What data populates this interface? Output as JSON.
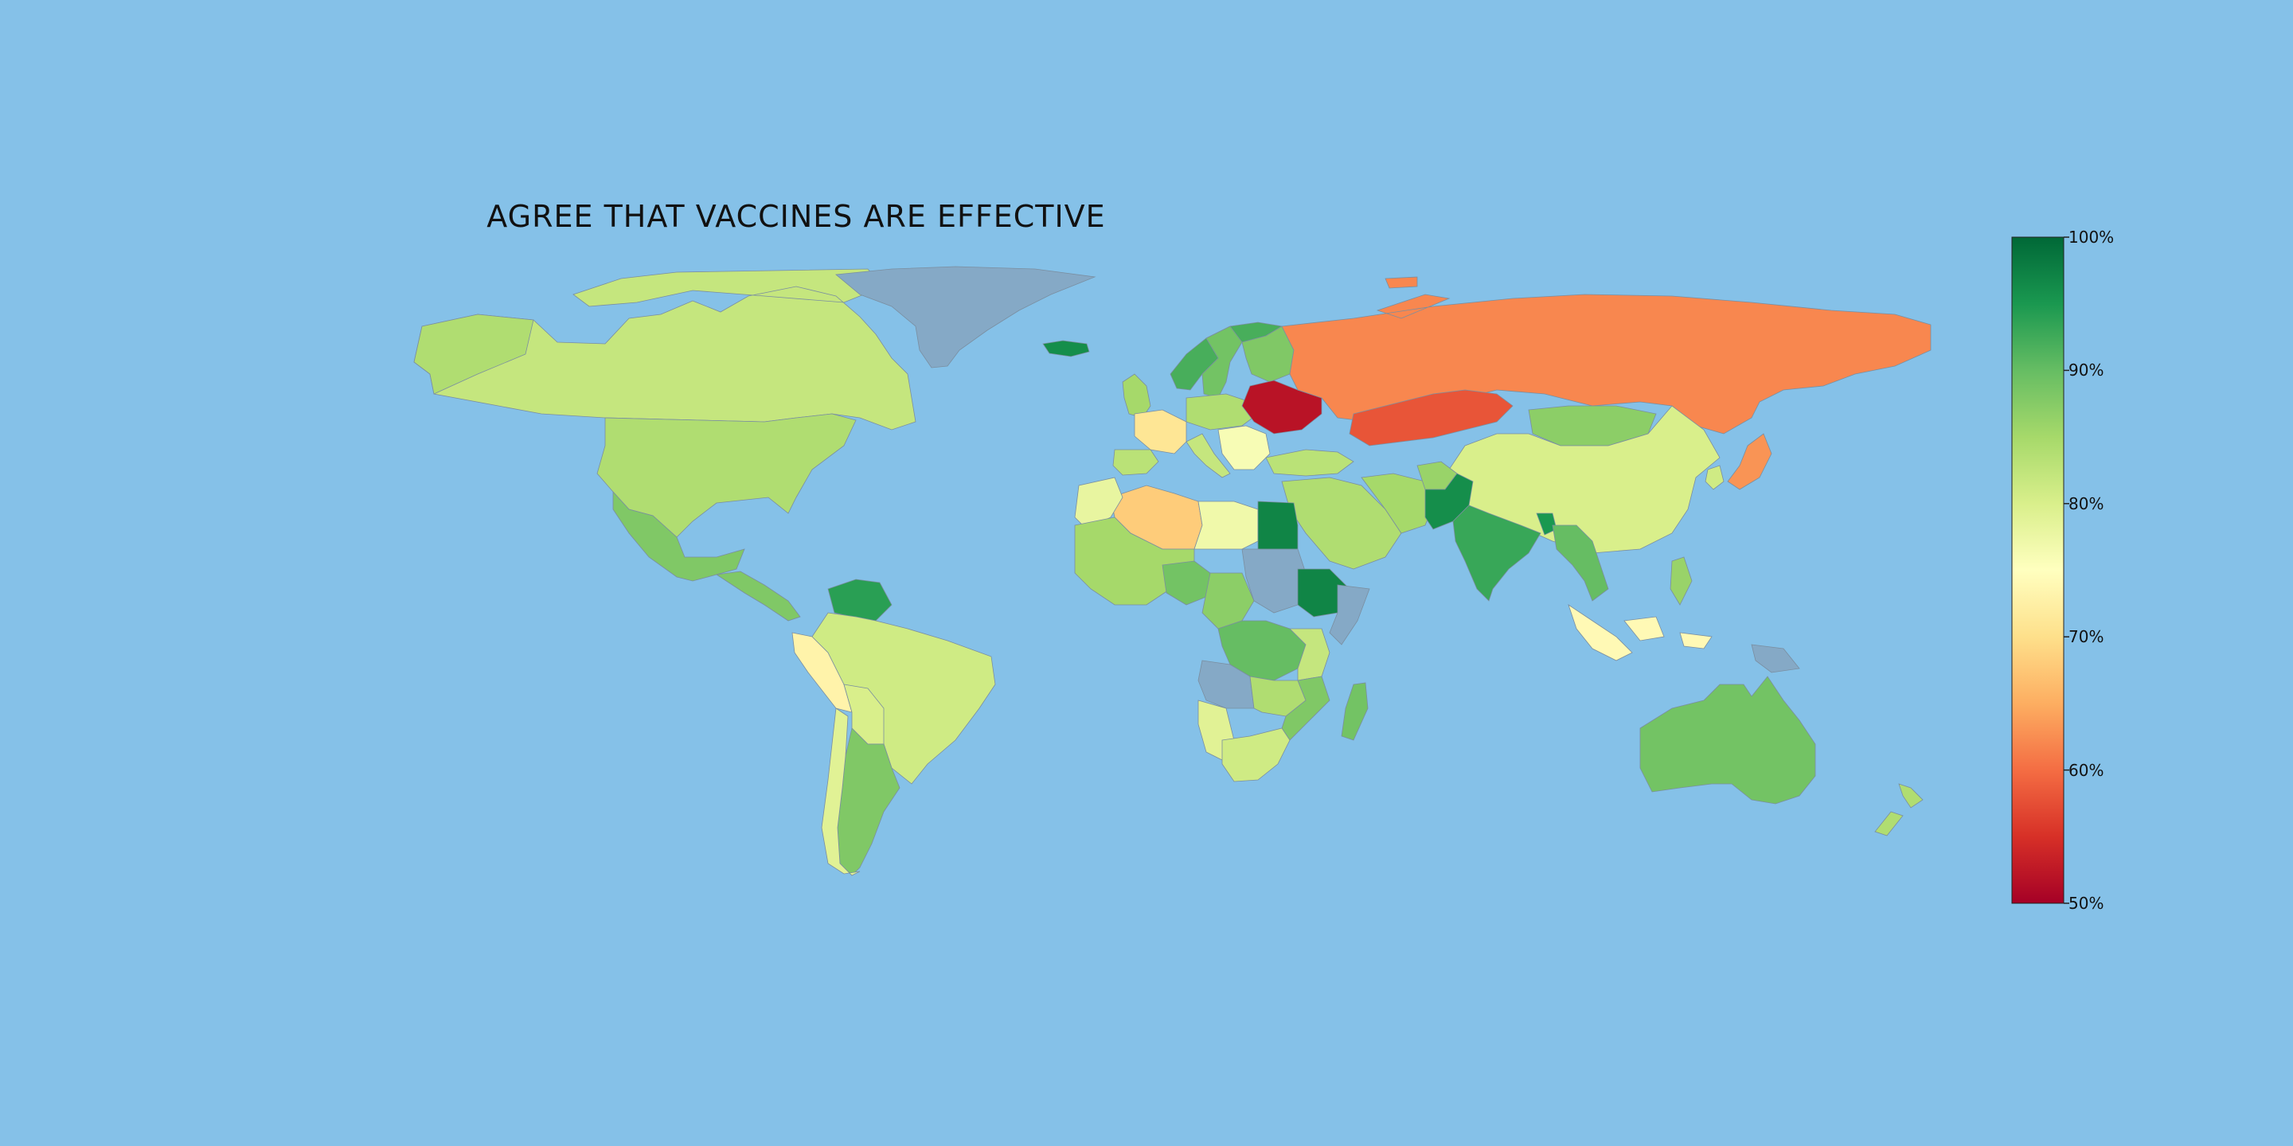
{
  "title": "AGREE THAT VACCINES ARE EFFECTIVE",
  "colors": {
    "ocean": "#85c1e8",
    "no_data": "#85a9c6",
    "border": "#7a8ea0"
  },
  "colorbar": {
    "min": 50,
    "max": 100,
    "ticks": [
      "100%",
      "90%",
      "80%",
      "70%",
      "60%",
      "50%"
    ],
    "tick_values": [
      100,
      90,
      80,
      70,
      60,
      50
    ],
    "colormap": "RdYlGn",
    "stops": [
      "#a50026",
      "#d73027",
      "#f46d43",
      "#fdae61",
      "#fee08b",
      "#ffffbf",
      "#d9ef8b",
      "#a6d96a",
      "#66bd63",
      "#1a9850",
      "#006837"
    ]
  },
  "regions": [
    {
      "name": "Canada",
      "value": 82
    },
    {
      "name": "United States",
      "value": 84
    },
    {
      "name": "Mexico",
      "value": 88
    },
    {
      "name": "Central America",
      "value": 88
    },
    {
      "name": "Venezuela",
      "value": 94
    },
    {
      "name": "Peru",
      "value": 73
    },
    {
      "name": "Brazil",
      "value": 81
    },
    {
      "name": "Bolivia",
      "value": 80
    },
    {
      "name": "Argentina",
      "value": 88
    },
    {
      "name": "Chile",
      "value": 79
    },
    {
      "name": "Greenland",
      "value": null
    },
    {
      "name": "Iceland",
      "value": 96
    },
    {
      "name": "Norway",
      "value": 92
    },
    {
      "name": "Sweden",
      "value": 89
    },
    {
      "name": "Finland",
      "value": 88
    },
    {
      "name": "United Kingdom",
      "value": 85
    },
    {
      "name": "France",
      "value": 71
    },
    {
      "name": "Spain",
      "value": 83
    },
    {
      "name": "Central Europe",
      "value": 84
    },
    {
      "name": "Italy",
      "value": 82
    },
    {
      "name": "Balkans",
      "value": 76
    },
    {
      "name": "Ukraine",
      "value": 52
    },
    {
      "name": "Russia",
      "value": 62
    },
    {
      "name": "Kazakhstan",
      "value": 58
    },
    {
      "name": "Turkey",
      "value": 83
    },
    {
      "name": "Mongolia",
      "value": 87
    },
    {
      "name": "China",
      "value": 80
    },
    {
      "name": "Japan",
      "value": 63
    },
    {
      "name": "Korea",
      "value": 81
    },
    {
      "name": "Middle East",
      "value": 84
    },
    {
      "name": "Iran",
      "value": 85
    },
    {
      "name": "Afghanistan",
      "value": 86
    },
    {
      "name": "Pakistan",
      "value": 96
    },
    {
      "name": "India",
      "value": 93
    },
    {
      "name": "Bangladesh",
      "value": 95
    },
    {
      "name": "Southeast Asia",
      "value": 90
    },
    {
      "name": "Philippines",
      "value": 86
    },
    {
      "name": "Indonesia",
      "value": 74
    },
    {
      "name": "Papua New Guinea",
      "value": null
    },
    {
      "name": "Australia",
      "value": 89
    },
    {
      "name": "New Zealand",
      "value": 84
    },
    {
      "name": "Algeria",
      "value": 68
    },
    {
      "name": "Morocco",
      "value": 78
    },
    {
      "name": "Libya",
      "value": 77
    },
    {
      "name": "Egypt",
      "value": 97
    },
    {
      "name": "West Africa",
      "value": 85
    },
    {
      "name": "Nigeria",
      "value": 89
    },
    {
      "name": "Sudan",
      "value": null
    },
    {
      "name": "Ethiopia",
      "value": 97
    },
    {
      "name": "Somalia",
      "value": null
    },
    {
      "name": "Central Africa",
      "value": 87
    },
    {
      "name": "DR Congo",
      "value": 90
    },
    {
      "name": "Angola",
      "value": null
    },
    {
      "name": "Tanzania",
      "value": 82
    },
    {
      "name": "Zambia",
      "value": 84
    },
    {
      "name": "Mozambique",
      "value": 88
    },
    {
      "name": "Namibia",
      "value": 79
    },
    {
      "name": "South Africa",
      "value": 81
    },
    {
      "name": "Madagascar",
      "value": 89
    }
  ]
}
